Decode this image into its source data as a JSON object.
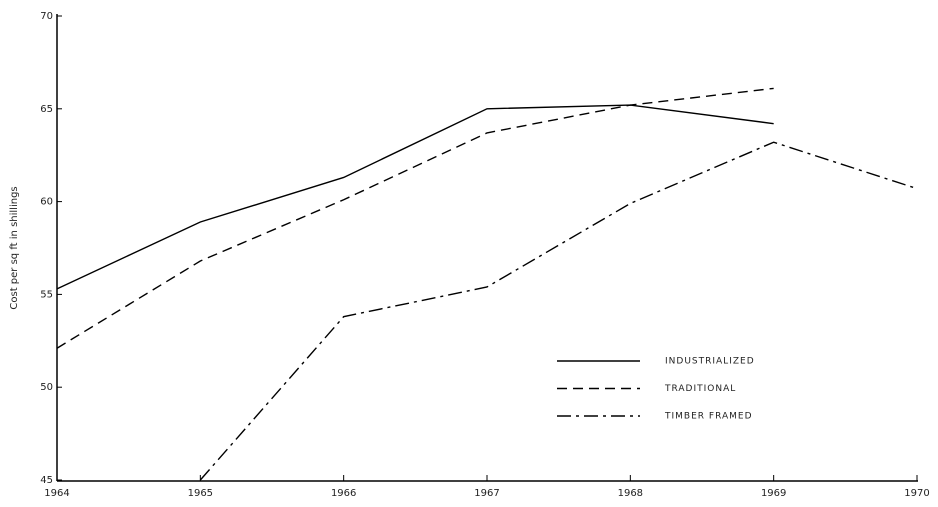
{
  "chart_data": {
    "type": "line",
    "y_label": "Cost per sq ft in shillings",
    "x": [
      1964,
      1965,
      1966,
      1967,
      1968,
      1969,
      1970
    ],
    "xlim": [
      1964,
      1970
    ],
    "xticks": [
      1964,
      1965,
      1966,
      1967,
      1968,
      1969,
      1970
    ],
    "ylim": [
      45,
      70
    ],
    "yticks": [
      45,
      50,
      55,
      60,
      65,
      70
    ],
    "series": [
      {
        "name": "INDUSTRIALIZED",
        "color": "#000000",
        "style": "solid",
        "values": [
          55.3,
          58.9,
          61.3,
          65.0,
          65.2,
          64.2,
          null
        ]
      },
      {
        "name": "TRADITIONAL",
        "color": "#000000",
        "style": "dashed",
        "values": [
          52.1,
          56.8,
          60.1,
          63.7,
          65.2,
          66.1,
          null
        ]
      },
      {
        "name": "TIMBER FRAMED",
        "color": "#000000",
        "style": "dashdot",
        "values": [
          null,
          45.0,
          53.8,
          55.4,
          59.9,
          63.2,
          60.7
        ]
      }
    ]
  }
}
